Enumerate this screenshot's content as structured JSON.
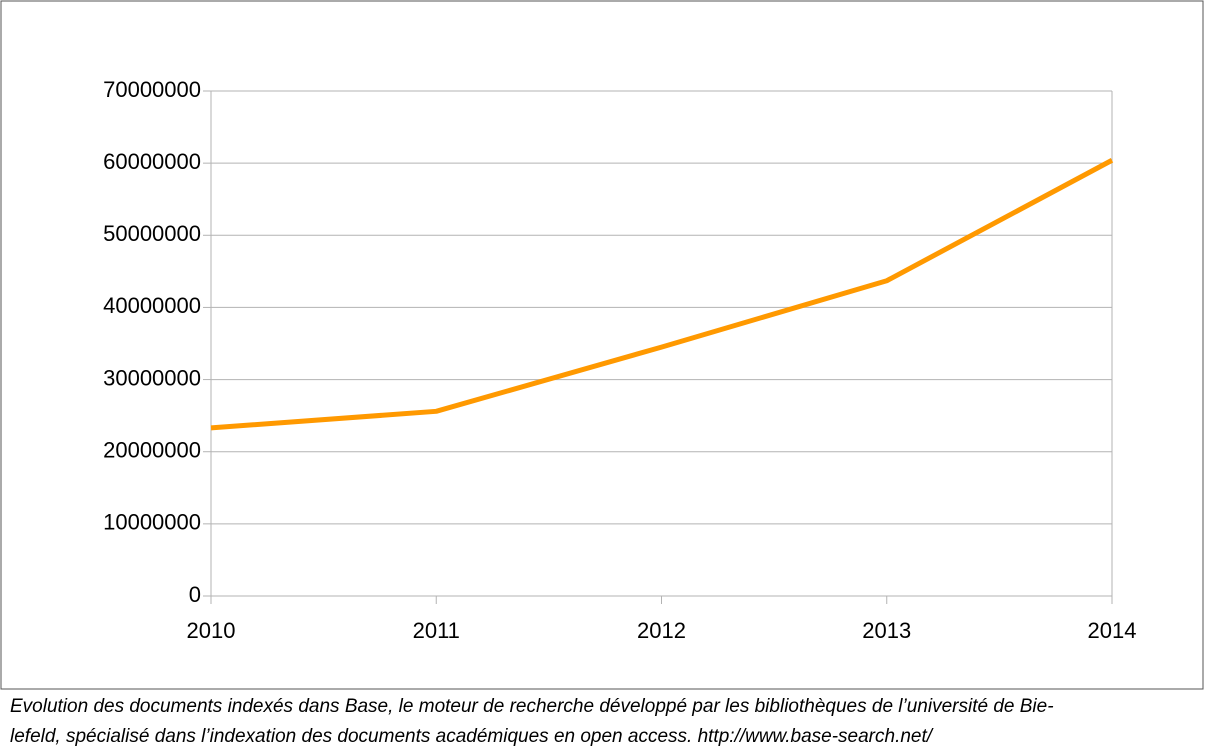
{
  "chart_data": {
    "type": "line",
    "x": [
      2010,
      2011,
      2012,
      2013,
      2014
    ],
    "series": [
      {
        "color": "#ff9900",
        "values": [
          23300000,
          25600000,
          34500000,
          43700000,
          60400000
        ]
      }
    ],
    "xlim": [
      2010,
      2014
    ],
    "xticks": [
      2010,
      2011,
      2012,
      2013,
      2014
    ],
    "ylim": [
      0,
      70000000
    ],
    "yticks": [
      0,
      10000000,
      20000000,
      30000000,
      40000000,
      50000000,
      60000000,
      70000000
    ],
    "grid": true,
    "caption": [
      "Evolution des documents indexés dans Base, le moteur de recherche développé par les bibliothèques de l’université de Bie-",
      "lefeld, spécialisé dans l’indexation des documents académiques en open access. http://www.base-search.net/"
    ]
  }
}
